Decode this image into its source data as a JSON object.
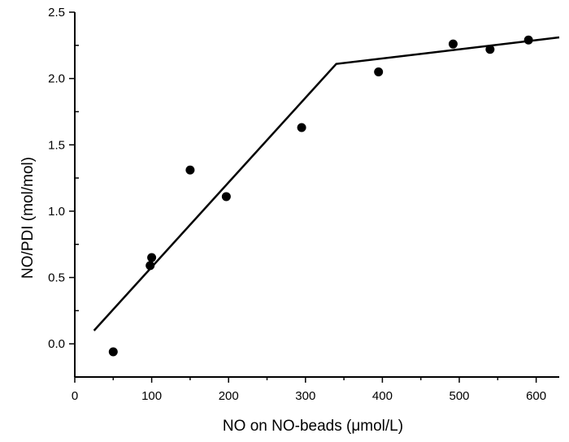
{
  "chart_data": {
    "type": "scatter",
    "xlabel": "NO on NO-beads (μmol/L)",
    "ylabel": "NO/PDI (mol/mol)",
    "xlim": [
      0,
      630
    ],
    "ylim": [
      -0.25,
      2.5
    ],
    "x_ticks": [
      0,
      100,
      200,
      300,
      400,
      500,
      600
    ],
    "y_ticks": [
      0.0,
      0.5,
      1.0,
      1.5,
      2.0,
      2.5
    ],
    "x_tick_labels": [
      "0",
      "100",
      "200",
      "300",
      "400",
      "500",
      "600"
    ],
    "y_tick_labels": [
      "0.0",
      "0.5",
      "1.0",
      "1.5",
      "2.0",
      "2.5"
    ],
    "grid": false,
    "series": [
      {
        "type": "scatter",
        "x": [
          50,
          98,
          100,
          150,
          197,
          295,
          395,
          492,
          540,
          590
        ],
        "y": [
          -0.06,
          0.59,
          0.65,
          1.31,
          1.11,
          1.63,
          2.05,
          2.26,
          2.22,
          2.29
        ]
      },
      {
        "type": "line",
        "x": [
          25,
          340,
          630
        ],
        "y": [
          0.1,
          2.11,
          2.31
        ]
      }
    ]
  }
}
